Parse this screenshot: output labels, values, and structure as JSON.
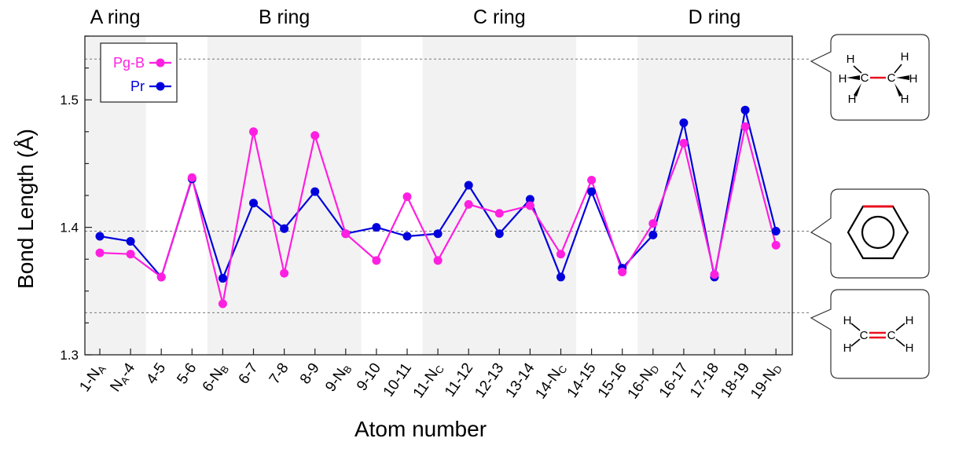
{
  "chart_data": {
    "type": "line",
    "xlabel": "Atom number",
    "ylabel": "Bond Length (Å)",
    "ylim": [
      1.3,
      1.55
    ],
    "yticks": [
      1.3,
      1.4,
      1.5
    ],
    "grid": false,
    "legend_position": "top-left",
    "categories": [
      {
        "main": "1-N",
        "sub": "A",
        "tail": ""
      },
      {
        "main": "N",
        "sub": "A",
        "tail": "-4"
      },
      {
        "main": "4-5",
        "sub": "",
        "tail": ""
      },
      {
        "main": "5-6",
        "sub": "",
        "tail": ""
      },
      {
        "main": "6-N",
        "sub": "B",
        "tail": ""
      },
      {
        "main": "6-7",
        "sub": "",
        "tail": ""
      },
      {
        "main": "7-8",
        "sub": "",
        "tail": ""
      },
      {
        "main": "8-9",
        "sub": "",
        "tail": ""
      },
      {
        "main": "9-N",
        "sub": "B",
        "tail": ""
      },
      {
        "main": "9-10",
        "sub": "",
        "tail": ""
      },
      {
        "main": "10-11",
        "sub": "",
        "tail": ""
      },
      {
        "main": "11-N",
        "sub": "C",
        "tail": ""
      },
      {
        "main": "11-12",
        "sub": "",
        "tail": ""
      },
      {
        "main": "12-13",
        "sub": "",
        "tail": ""
      },
      {
        "main": "13-14",
        "sub": "",
        "tail": ""
      },
      {
        "main": "14-N",
        "sub": "C",
        "tail": ""
      },
      {
        "main": "14-15",
        "sub": "",
        "tail": ""
      },
      {
        "main": "15-16",
        "sub": "",
        "tail": ""
      },
      {
        "main": "16-N",
        "sub": "D",
        "tail": ""
      },
      {
        "main": "16-17",
        "sub": "",
        "tail": ""
      },
      {
        "main": "17-18",
        "sub": "",
        "tail": ""
      },
      {
        "main": "18-19",
        "sub": "",
        "tail": ""
      },
      {
        "main": "19-N",
        "sub": "D",
        "tail": ""
      }
    ],
    "series": [
      {
        "name": "Pg-B",
        "color": "#ff1fe0",
        "values": [
          1.38,
          1.379,
          1.361,
          1.439,
          1.34,
          1.475,
          1.364,
          1.472,
          1.395,
          1.374,
          1.424,
          1.374,
          1.418,
          1.411,
          1.417,
          1.379,
          1.437,
          1.365,
          1.403,
          1.466,
          1.363,
          1.479,
          1.386
        ]
      },
      {
        "name": "Pr",
        "color": "#0000dd",
        "values": [
          1.393,
          1.389,
          1.361,
          1.438,
          1.36,
          1.419,
          1.399,
          1.428,
          1.395,
          1.4,
          1.393,
          1.395,
          1.433,
          1.395,
          1.422,
          1.361,
          1.428,
          1.368,
          1.394,
          1.482,
          1.361,
          1.492,
          1.397
        ]
      }
    ],
    "reference_lines": [
      1.532,
      1.397,
      1.333
    ],
    "rings": [
      {
        "label": "A ring",
        "start_index": 0,
        "end_index": 1,
        "shaded": true
      },
      {
        "label": "B ring",
        "start_index": 4,
        "end_index": 8,
        "shaded": true
      },
      {
        "label": "C ring",
        "start_index": 11,
        "end_index": 15,
        "shaded": true
      },
      {
        "label": "D ring",
        "start_index": 18,
        "end_index": 22,
        "shaded": true
      }
    ]
  },
  "callouts": {
    "ethane": {
      "icon": "ethane-structure-icon",
      "atoms": [
        "H",
        "H",
        "H",
        "C",
        "C",
        "H",
        "H",
        "H"
      ]
    },
    "benzene": {
      "icon": "benzene-structure-icon"
    },
    "ethylene": {
      "icon": "ethylene-structure-icon",
      "atoms": [
        "H",
        "H",
        "C",
        "C",
        "H",
        "H"
      ]
    }
  },
  "colors": {
    "shade": "#f2f2f2",
    "highlight_bond": "#e8101e",
    "ref_line": "#777777"
  }
}
